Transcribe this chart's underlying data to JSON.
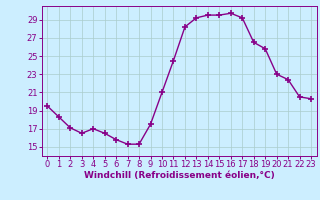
{
  "x": [
    0,
    1,
    2,
    3,
    4,
    5,
    6,
    7,
    8,
    9,
    10,
    11,
    12,
    13,
    14,
    15,
    16,
    17,
    18,
    19,
    20,
    21,
    22,
    23
  ],
  "y": [
    19.5,
    18.3,
    17.1,
    16.5,
    17.0,
    16.5,
    15.8,
    15.3,
    15.3,
    17.5,
    21.0,
    24.5,
    28.2,
    29.2,
    29.5,
    29.5,
    29.7,
    29.2,
    26.5,
    25.8,
    23.0,
    22.4,
    20.5,
    20.3
  ],
  "line_color": "#880088",
  "marker": "+",
  "markersize": 4,
  "markeredgewidth": 1.2,
  "linewidth": 1.0,
  "bg_color": "#cceeff",
  "grid_color": "#aacccc",
  "xlabel": "Windchill (Refroidissement éolien,°C)",
  "xlim": [
    -0.5,
    23.5
  ],
  "ylim": [
    14.0,
    30.5
  ],
  "yticks": [
    15,
    17,
    19,
    21,
    23,
    25,
    27,
    29
  ],
  "xticks": [
    0,
    1,
    2,
    3,
    4,
    5,
    6,
    7,
    8,
    9,
    10,
    11,
    12,
    13,
    14,
    15,
    16,
    17,
    18,
    19,
    20,
    21,
    22,
    23
  ],
  "xlabel_fontsize": 6.5,
  "tick_fontsize": 6
}
